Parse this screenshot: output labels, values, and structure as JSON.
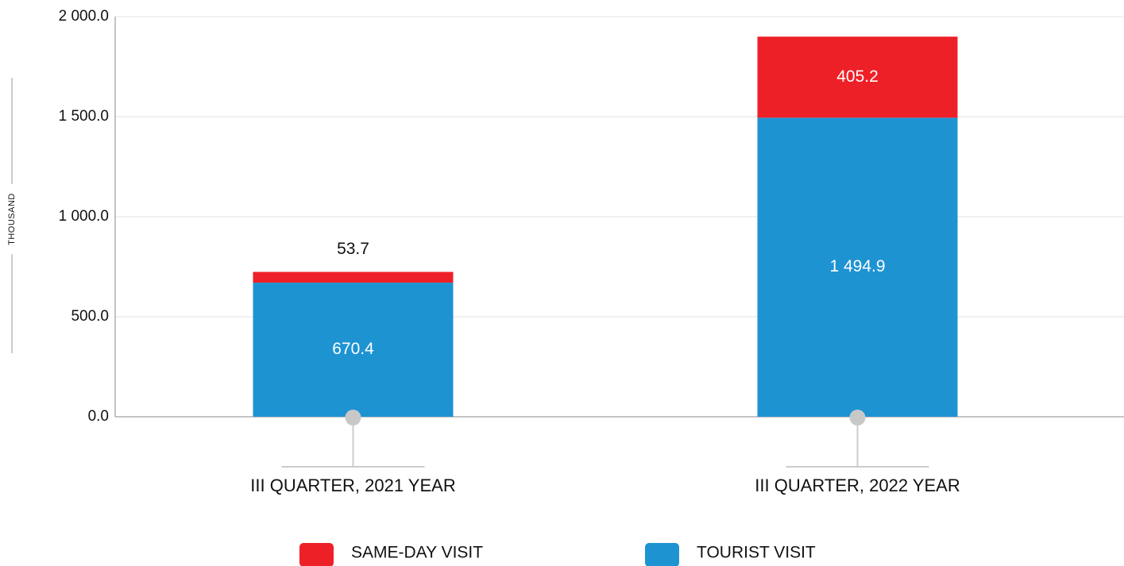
{
  "chart_data": {
    "type": "stacked_bar",
    "y_label": "THOUSAND",
    "categories": [
      "III QUARTER, 2021 YEAR",
      "III QUARTER, 2022 YEAR"
    ],
    "series": [
      {
        "name": "SAME-DAY VISIT",
        "color": "#ee2027",
        "values": [
          53.7,
          405.2
        ],
        "value_labels": [
          "53.7",
          "405.2"
        ]
      },
      {
        "name": "TOURIST VISIT",
        "color": "#1e93d2",
        "values": [
          670.4,
          1494.9
        ],
        "value_labels": [
          "670.4",
          "1 494.9"
        ]
      }
    ],
    "ylim": [
      0,
      2000
    ],
    "yticks": [
      {
        "value": 0,
        "label": "0.0"
      },
      {
        "value": 500,
        "label": "500.0"
      },
      {
        "value": 1000,
        "label": "1 000.0"
      },
      {
        "value": 1500,
        "label": "1 500.0"
      },
      {
        "value": 2000,
        "label": "2 000.0"
      }
    ],
    "grid": true,
    "legend": "bottom"
  }
}
